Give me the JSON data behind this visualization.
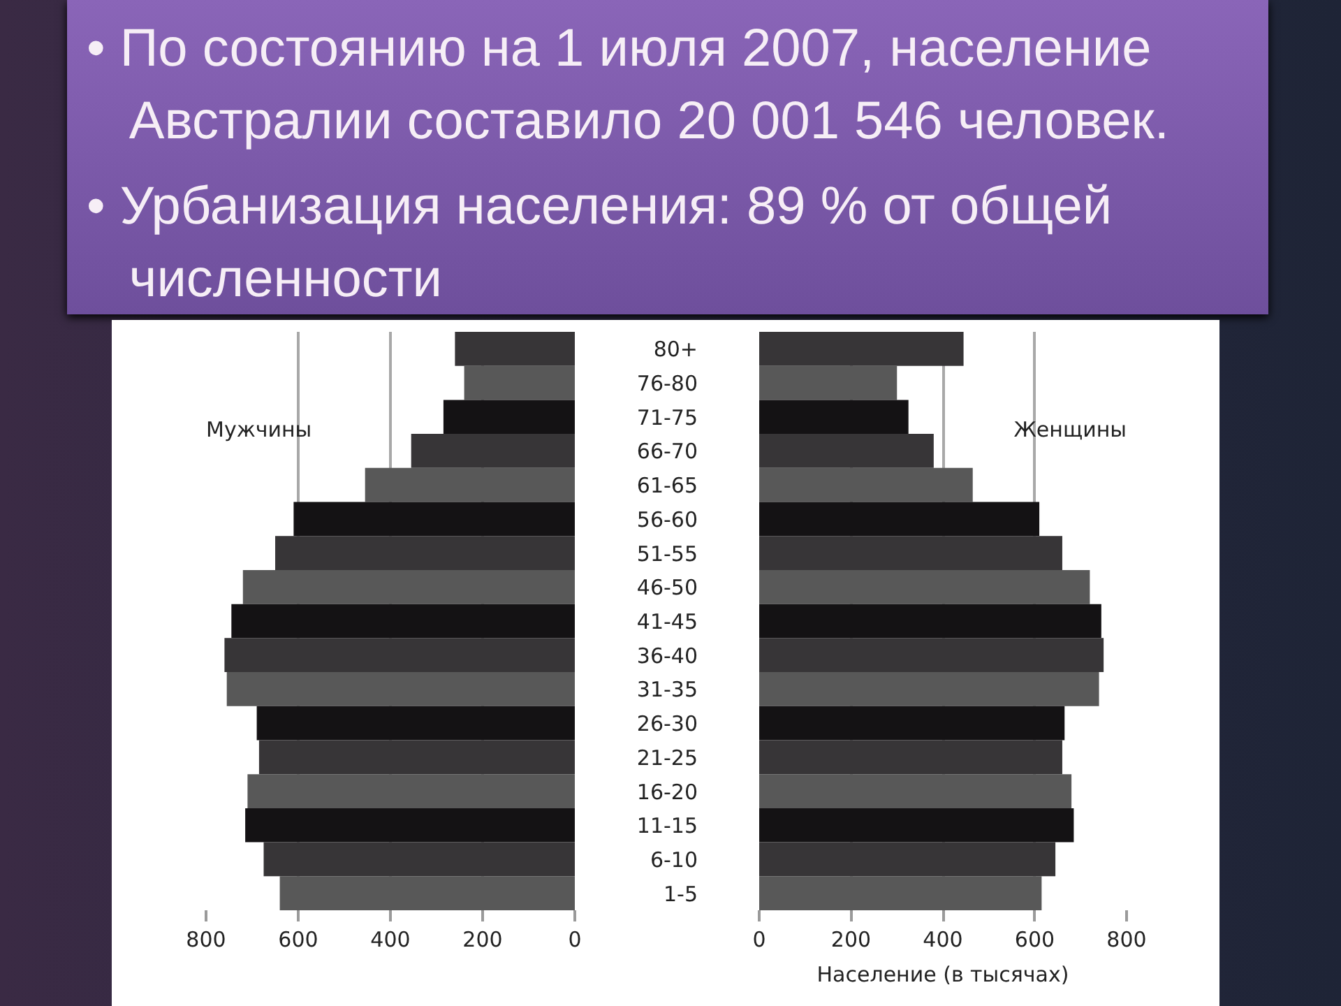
{
  "chart_data": [
    {
      "type": "bar",
      "orientation": "horizontal",
      "title": "• По состоянию на 1 июля 2007, население Австралии составило 20 001 546 человек.",
      "subtitle": "• Урбанизация населения: 89 % от общей численности",
      "categories": [
        null,
        null,
        null,
        null,
        null,
        null,
        null,
        null,
        null,
        null,
        null,
        null,
        null,
        null,
        null,
        null,
        null
      ],
      "series": [
        {
          "name": "Мужчины",
          "colors": [
            "#373537",
            "#585858",
            "#141214",
            "#373537",
            "#585858",
            "#141214",
            "#373537",
            "#585858",
            "#141214",
            "#373537",
            "#585858",
            "#141214",
            "#373537",
            "#585858",
            "#141214",
            "#373537",
            "#585858"
          ],
          "values": [
            260,
            240,
            285,
            355,
            455,
            610,
            650,
            720,
            745,
            760,
            755,
            690,
            685,
            710,
            715,
            675,
            640
          ]
        }
      ],
      "xlim": [
        800,
        0
      ],
      "xticks": [
        800,
        600,
        400,
        200,
        0
      ],
      "grid": "x"
    },
    {
      "type": "bar",
      "orientation": "horizontal",
      "xlabel": "Население (в тысячах)",
      "categories": [
        "80+",
        "76-80",
        "71-75",
        "66-70",
        "61-65",
        "56-60",
        "51-55",
        "46-50",
        "41-45",
        "36-40",
        "31-35",
        "26-30",
        "21-25",
        "16-20",
        "11-15",
        "6-10",
        "1-5"
      ],
      "series": [
        {
          "name": "Женщины",
          "colors": [
            "#373537",
            "#585858",
            "#141214",
            "#373537",
            "#585858",
            "#141214",
            "#373537",
            "#585858",
            "#141214",
            "#373537",
            "#585858",
            "#141214",
            "#373537",
            "#585858",
            "#141214",
            "#373537",
            "#585858"
          ],
          "values": [
            445,
            300,
            325,
            380,
            465,
            610,
            660,
            720,
            745,
            750,
            740,
            665,
            660,
            680,
            685,
            645,
            615
          ]
        }
      ],
      "xlim": [
        0,
        800
      ],
      "xticks": [
        0,
        200,
        400,
        600,
        800
      ],
      "grid": "x"
    }
  ]
}
